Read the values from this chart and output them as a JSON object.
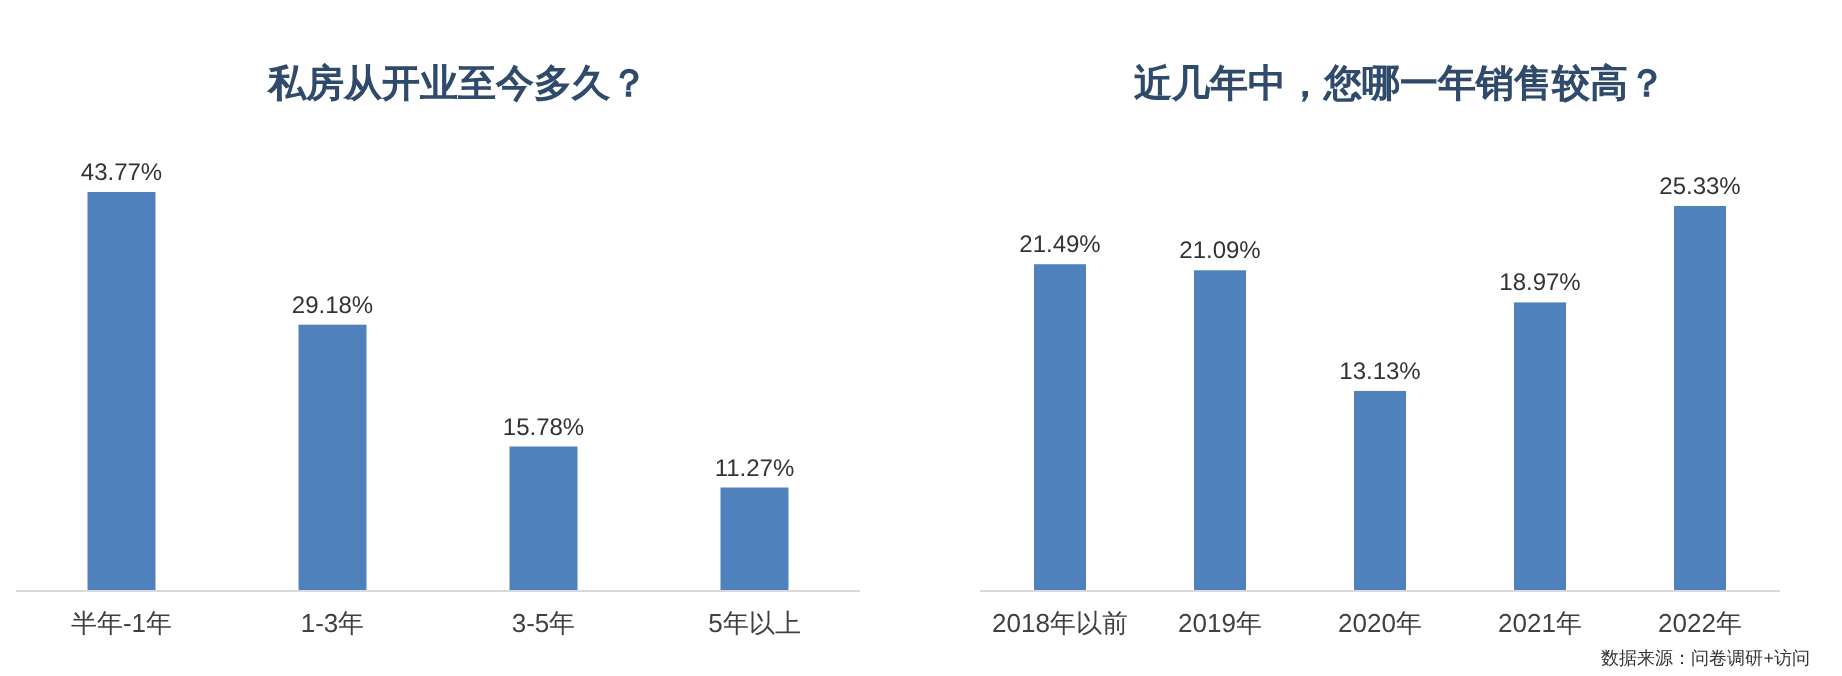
{
  "chart_data": [
    {
      "type": "bar",
      "title": "私房从开业至今多久？",
      "categories": [
        "半年-1年",
        "1-3年",
        "3-5年",
        "5年以上"
      ],
      "values": [
        43.77,
        29.18,
        15.78,
        11.27
      ],
      "value_labels": [
        "43.77%",
        "29.18%",
        "15.78%",
        "11.27%"
      ],
      "color": "#4f81bd"
    },
    {
      "type": "bar",
      "title": "近几年中，您哪一年销售较高？",
      "categories": [
        "2018年以前",
        "2019年",
        "2020年",
        "2021年",
        "2022年"
      ],
      "values": [
        21.49,
        21.09,
        13.13,
        18.97,
        25.33
      ],
      "value_labels": [
        "21.49%",
        "21.09%",
        "13.13%",
        "18.97%",
        "25.33%"
      ],
      "color": "#4f81bd",
      "annotations": [
        "数据来源：问卷调研+访问"
      ]
    }
  ]
}
